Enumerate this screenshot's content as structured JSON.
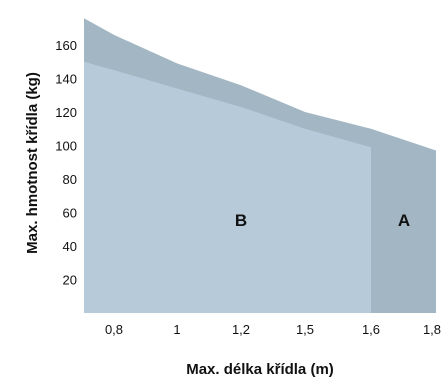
{
  "chart_data": {
    "type": "area",
    "xlabel": "Max. délka křídla (m)",
    "ylabel": "Max. hmotnost křídla (kg)",
    "x_tick_labels": [
      "0,8",
      "1",
      "1,2",
      "1,5",
      "1,6",
      "1,8"
    ],
    "y_ticks": [
      20,
      40,
      60,
      80,
      100,
      120,
      140,
      160
    ],
    "ylim": [
      0,
      178
    ],
    "grid": false,
    "series": [
      {
        "name": "A",
        "x": [
          "0,7",
          "0,8",
          "1",
          "1,2",
          "1,5",
          "1,6",
          "1,8"
        ],
        "values": [
          176,
          166,
          149,
          136,
          120,
          110,
          97
        ],
        "color": "#a3b6c3"
      },
      {
        "name": "B",
        "x": [
          "0,7",
          "0,8",
          "1",
          "1,2",
          "1,5",
          "1,6"
        ],
        "values": [
          150,
          145,
          134,
          123,
          110,
          99
        ],
        "color": "#b6cad9"
      }
    ]
  }
}
